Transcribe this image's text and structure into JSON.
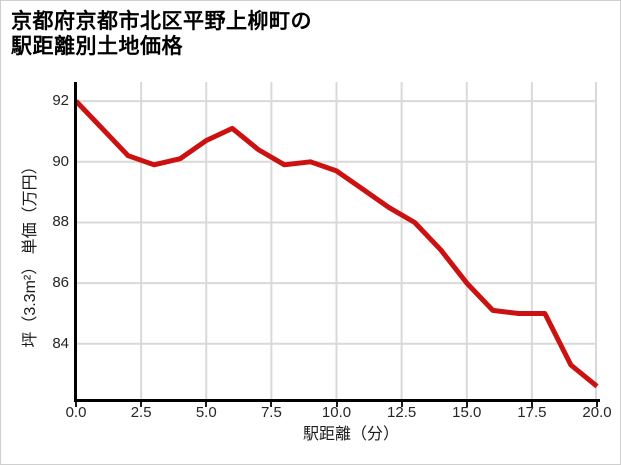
{
  "title_lines": [
    "京都府京都市北区平野上柳町の",
    "駅距離別土地価格"
  ],
  "chart_data": {
    "type": "line",
    "title": "京都府京都市北区平野上柳町の駅距離別土地価格",
    "xlabel": "駅距離（分）",
    "ylabel": "坪（3.3m²） 単価（万円）",
    "x": [
      0,
      1,
      2,
      3,
      4,
      5,
      6,
      7,
      8,
      9,
      10,
      11,
      12,
      13,
      14,
      15,
      16,
      17,
      18,
      19,
      20
    ],
    "values": [
      92.0,
      91.1,
      90.2,
      89.9,
      90.1,
      90.7,
      91.1,
      90.4,
      89.9,
      90.0,
      89.7,
      89.1,
      88.5,
      88.0,
      87.1,
      86.0,
      85.1,
      85.0,
      85.0,
      83.3,
      82.6
    ],
    "series_name": "坪単価（万円）",
    "xlim": [
      0,
      20
    ],
    "ylim": [
      82.18,
      92.63
    ],
    "xtick_labels": [
      "0.0",
      "2.5",
      "5.0",
      "7.5",
      "10.0",
      "12.5",
      "15.0",
      "17.5",
      "20.0"
    ],
    "xtick_values": [
      0,
      2.5,
      5,
      7.5,
      10,
      12.5,
      15,
      17.5,
      20
    ],
    "ytick_labels": [
      "92",
      "90",
      "88",
      "86",
      "84"
    ],
    "ytick_values": [
      92,
      90,
      88,
      86,
      84
    ],
    "grid": true,
    "legend": "none",
    "line_color": "#cc1111",
    "grid_color": "#d9d9d9",
    "spine_color": "#000000",
    "tick_text_color": "#262626"
  }
}
